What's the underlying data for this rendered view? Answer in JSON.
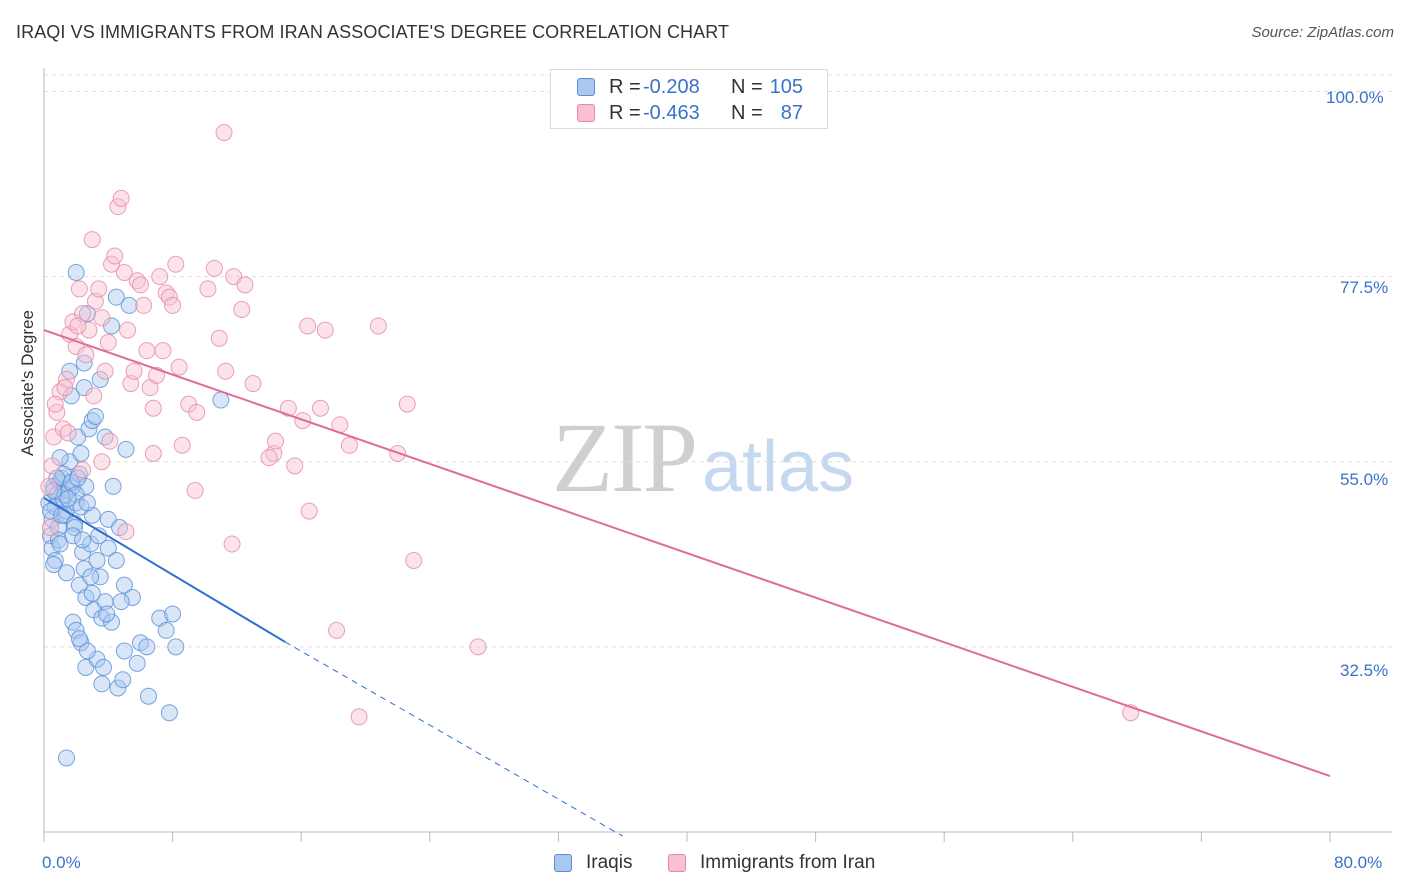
{
  "header": {
    "title": "IRAQI VS IMMIGRANTS FROM IRAN ASSOCIATE'S DEGREE CORRELATION CHART",
    "source": "Source: ZipAtlas.com"
  },
  "watermark": {
    "zip": "ZIP",
    "atlas": "atlas"
  },
  "legend": {
    "rows": [
      {
        "r_label": "R =",
        "r_value": "-0.208",
        "n_label": "N =",
        "n_value": "105",
        "color": "#a8c8f0",
        "border": "#5b8fd6"
      },
      {
        "r_label": "R =",
        "r_value": "-0.463",
        "n_label": "N =",
        "n_value": "87",
        "color": "#f8c0d0",
        "border": "#e58aa6"
      }
    ]
  },
  "bottom_legend": {
    "items": [
      {
        "label": "Iraqis",
        "color": "#a8c8f0",
        "border": "#5b8fd6"
      },
      {
        "label": "Immigrants from Iran",
        "color": "#f8c0d0",
        "border": "#e58aa6"
      }
    ]
  },
  "axes": {
    "x_min_label": "0.0%",
    "x_max_label": "80.0%",
    "y_labels": [
      "100.0%",
      "77.5%",
      "55.0%",
      "32.5%"
    ],
    "ylabel": "Associate's Degree"
  },
  "chart_data": {
    "type": "scatter",
    "title": "IRAQI VS IMMIGRANTS FROM IRAN ASSOCIATE'S DEGREE CORRELATION CHART",
    "xlabel": "",
    "ylabel": "Associate's Degree",
    "xlim": [
      0,
      80
    ],
    "ylim": [
      10,
      102
    ],
    "y_ticks": [
      32.5,
      55.0,
      77.5,
      100.0
    ],
    "grid": true,
    "legend_position": "top-center",
    "series": [
      {
        "name": "Iraqis",
        "color": "#5b8fd6",
        "fill": "#a8c8f0",
        "R": -0.208,
        "N": 105,
        "trend": {
          "x0": 0,
          "y0": 50.6,
          "x1": 15,
          "y1": 33.1,
          "dashed_to_x": 36,
          "dashed_to_y": 9.5
        },
        "points": [
          [
            0.3,
            50.0
          ],
          [
            0.5,
            48.0
          ],
          [
            0.6,
            52.0
          ],
          [
            0.4,
            46.0
          ],
          [
            0.8,
            51.0
          ],
          [
            0.7,
            49.5
          ],
          [
            1.0,
            52.5
          ],
          [
            0.9,
            47.0
          ],
          [
            1.2,
            50.5
          ],
          [
            1.1,
            53.0
          ],
          [
            1.3,
            48.5
          ],
          [
            0.5,
            44.5
          ],
          [
            0.7,
            43.0
          ],
          [
            1.5,
            51.5
          ],
          [
            1.4,
            49.0
          ],
          [
            1.6,
            55.0
          ],
          [
            1.8,
            52.0
          ],
          [
            2.0,
            50.0
          ],
          [
            2.2,
            53.5
          ],
          [
            1.9,
            47.5
          ],
          [
            2.3,
            56.0
          ],
          [
            2.1,
            58.0
          ],
          [
            1.7,
            63.0
          ],
          [
            2.5,
            64.0
          ],
          [
            2.8,
            59.0
          ],
          [
            3.0,
            60.0
          ],
          [
            2.6,
            52.0
          ],
          [
            2.4,
            44.0
          ],
          [
            2.9,
            45.0
          ],
          [
            3.3,
            43.0
          ],
          [
            2.2,
            40.0
          ],
          [
            2.6,
            38.5
          ],
          [
            3.1,
            37.0
          ],
          [
            3.6,
            36.0
          ],
          [
            3.8,
            38.0
          ],
          [
            1.8,
            35.5
          ],
          [
            2.0,
            34.5
          ],
          [
            2.3,
            33.0
          ],
          [
            2.6,
            30.0
          ],
          [
            3.3,
            31.0
          ],
          [
            3.0,
            39.0
          ],
          [
            3.5,
            41.0
          ],
          [
            4.0,
            44.5
          ],
          [
            4.5,
            43.0
          ],
          [
            5.0,
            40.0
          ],
          [
            5.5,
            38.5
          ],
          [
            6.0,
            33.0
          ],
          [
            7.2,
            36.0
          ],
          [
            7.6,
            34.5
          ],
          [
            8.0,
            36.5
          ],
          [
            8.2,
            32.5
          ],
          [
            4.8,
            38.0
          ],
          [
            4.2,
            35.5
          ],
          [
            3.7,
            30.0
          ],
          [
            4.6,
            27.5
          ],
          [
            5.8,
            30.5
          ],
          [
            6.5,
            26.5
          ],
          [
            5.0,
            32.0
          ],
          [
            3.9,
            36.5
          ],
          [
            2.7,
            32.0
          ],
          [
            1.2,
            53.5
          ],
          [
            1.4,
            41.5
          ],
          [
            0.9,
            45.5
          ],
          [
            0.6,
            42.5
          ],
          [
            1.9,
            47.0
          ],
          [
            2.5,
            42.0
          ],
          [
            3.0,
            48.5
          ],
          [
            4.0,
            48.0
          ],
          [
            4.3,
            52.0
          ],
          [
            5.1,
            56.5
          ],
          [
            1.6,
            66.0
          ],
          [
            2.5,
            67.0
          ],
          [
            3.2,
            60.5
          ],
          [
            3.5,
            65.0
          ],
          [
            4.2,
            71.5
          ],
          [
            4.5,
            75.0
          ],
          [
            2.0,
            78.0
          ],
          [
            2.7,
            73.0
          ],
          [
            5.3,
            74.0
          ],
          [
            11.0,
            62.5
          ],
          [
            1.4,
            19.0
          ],
          [
            7.8,
            24.5
          ],
          [
            2.2,
            33.5
          ],
          [
            3.6,
            28.0
          ],
          [
            4.9,
            28.5
          ],
          [
            6.4,
            32.5
          ],
          [
            2.9,
            41.0
          ],
          [
            3.4,
            46.0
          ],
          [
            4.7,
            47.0
          ],
          [
            1.0,
            45.0
          ],
          [
            0.8,
            53.0
          ],
          [
            1.3,
            51.0
          ],
          [
            1.7,
            52.5
          ],
          [
            2.0,
            51.0
          ],
          [
            2.3,
            49.5
          ],
          [
            0.4,
            49.0
          ],
          [
            0.6,
            51.5
          ],
          [
            1.1,
            48.5
          ],
          [
            1.5,
            50.5
          ],
          [
            2.1,
            53.0
          ],
          [
            1.0,
            55.5
          ],
          [
            3.8,
            58.0
          ],
          [
            2.7,
            50.0
          ],
          [
            1.8,
            46.0
          ],
          [
            2.4,
            45.5
          ]
        ]
      },
      {
        "name": "Immigrants from Iran",
        "color": "#e58aa6",
        "fill": "#f8c0d0",
        "R": -0.463,
        "N": 87,
        "trend": {
          "x0": 0,
          "y0": 71.0,
          "x1": 80,
          "y1": 16.8
        },
        "points": [
          [
            0.3,
            52.0
          ],
          [
            0.5,
            54.5
          ],
          [
            0.6,
            58.0
          ],
          [
            0.8,
            61.0
          ],
          [
            1.0,
            63.5
          ],
          [
            1.2,
            59.0
          ],
          [
            1.4,
            65.0
          ],
          [
            1.6,
            70.5
          ],
          [
            1.8,
            72.0
          ],
          [
            2.0,
            69.0
          ],
          [
            2.2,
            76.0
          ],
          [
            2.4,
            73.0
          ],
          [
            2.6,
            68.0
          ],
          [
            2.8,
            71.0
          ],
          [
            3.0,
            82.0
          ],
          [
            3.2,
            74.5
          ],
          [
            3.4,
            76.0
          ],
          [
            3.6,
            72.5
          ],
          [
            3.8,
            66.0
          ],
          [
            4.0,
            69.5
          ],
          [
            4.2,
            79.0
          ],
          [
            4.4,
            80.0
          ],
          [
            4.6,
            86.0
          ],
          [
            4.8,
            87.0
          ],
          [
            5.0,
            78.0
          ],
          [
            5.2,
            71.0
          ],
          [
            5.4,
            64.5
          ],
          [
            5.6,
            66.0
          ],
          [
            5.8,
            77.0
          ],
          [
            6.0,
            76.5
          ],
          [
            6.2,
            74.0
          ],
          [
            6.4,
            68.5
          ],
          [
            6.6,
            64.0
          ],
          [
            6.8,
            61.5
          ],
          [
            7.0,
            65.5
          ],
          [
            7.2,
            77.5
          ],
          [
            7.4,
            68.5
          ],
          [
            7.6,
            75.5
          ],
          [
            7.8,
            75.0
          ],
          [
            8.0,
            74.0
          ],
          [
            8.2,
            79.0
          ],
          [
            8.4,
            66.5
          ],
          [
            8.6,
            57.0
          ],
          [
            9.0,
            62.0
          ],
          [
            9.5,
            61.0
          ],
          [
            10.2,
            76.0
          ],
          [
            10.6,
            78.5
          ],
          [
            10.9,
            70.0
          ],
          [
            11.3,
            66.0
          ],
          [
            11.8,
            77.5
          ],
          [
            12.3,
            73.5
          ],
          [
            13.0,
            64.5
          ],
          [
            14.3,
            56.0
          ],
          [
            15.2,
            61.5
          ],
          [
            16.1,
            60.0
          ],
          [
            12.5,
            76.5
          ],
          [
            11.2,
            95.0
          ],
          [
            9.4,
            51.5
          ],
          [
            11.7,
            45.0
          ],
          [
            14.0,
            55.5
          ],
          [
            16.5,
            49.0
          ],
          [
            17.5,
            71.0
          ],
          [
            19.0,
            57.0
          ],
          [
            20.8,
            71.5
          ],
          [
            22.0,
            56.0
          ],
          [
            23.0,
            43.0
          ],
          [
            18.2,
            34.5
          ],
          [
            27.0,
            32.5
          ],
          [
            16.4,
            71.5
          ],
          [
            17.2,
            61.5
          ],
          [
            15.6,
            54.5
          ],
          [
            14.4,
            57.5
          ],
          [
            18.4,
            59.5
          ],
          [
            22.6,
            62.0
          ],
          [
            19.6,
            24.0
          ],
          [
            67.6,
            24.5
          ],
          [
            1.3,
            64.0
          ],
          [
            2.1,
            71.5
          ],
          [
            3.1,
            63.0
          ],
          [
            4.1,
            57.5
          ],
          [
            5.1,
            46.5
          ],
          [
            0.7,
            62.0
          ],
          [
            1.5,
            58.5
          ],
          [
            2.4,
            54.0
          ],
          [
            0.4,
            47.0
          ],
          [
            3.6,
            55.0
          ],
          [
            6.8,
            56.0
          ]
        ]
      }
    ]
  }
}
